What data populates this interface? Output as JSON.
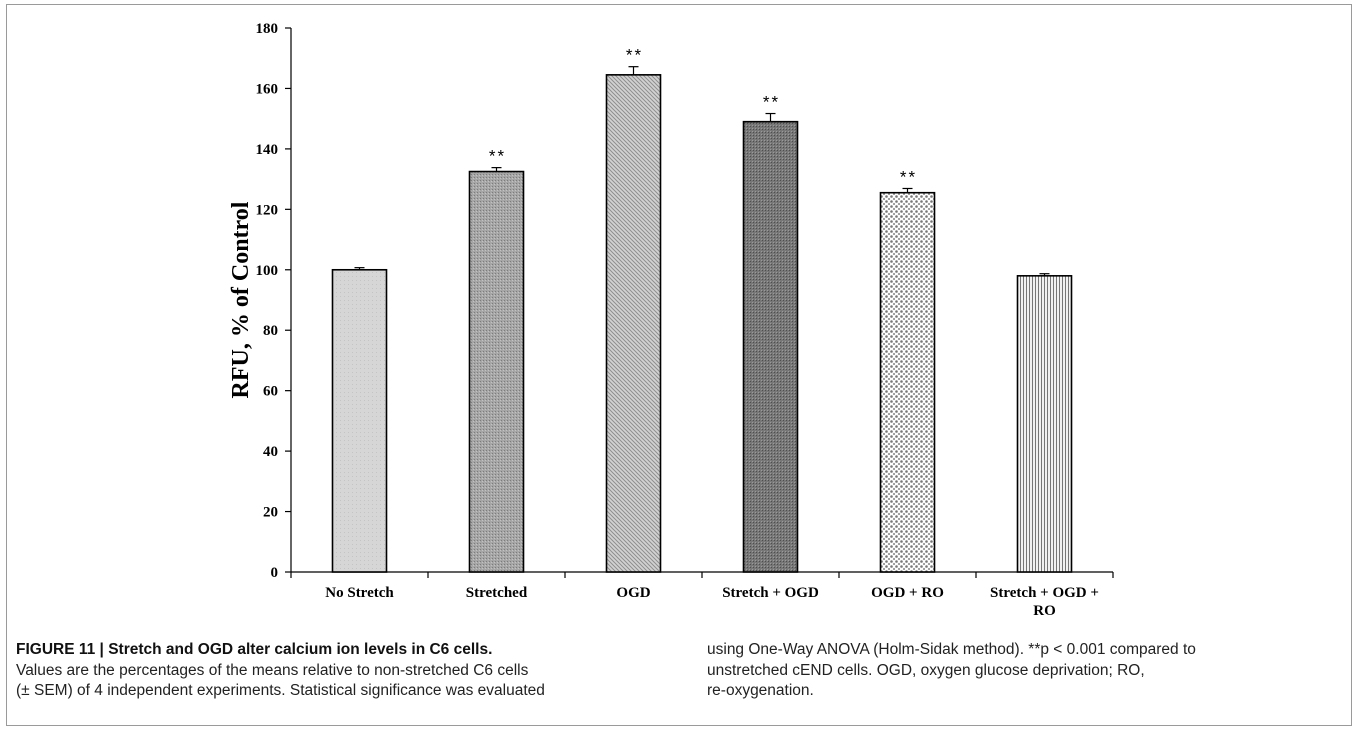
{
  "chart_data": {
    "type": "bar",
    "title": "",
    "xlabel": "",
    "ylabel": "RFU,  % of Control",
    "ylim": [
      0,
      180
    ],
    "yticks": [
      0,
      20,
      40,
      60,
      80,
      100,
      120,
      140,
      160,
      180
    ],
    "categories": [
      [
        "No Stretch"
      ],
      [
        "Stretched"
      ],
      [
        "OGD"
      ],
      [
        "Stretch + OGD"
      ],
      [
        "OGD + RO"
      ],
      [
        "Stretch + OGD +",
        "RO"
      ]
    ],
    "values": [
      100,
      132.5,
      164.5,
      149,
      125.5,
      98
    ],
    "errors": [
      0.7,
      1.3,
      2.7,
      2.7,
      1.4,
      0.7
    ],
    "significance": [
      "",
      "**",
      "**",
      "**",
      "**",
      ""
    ],
    "patterns": [
      "light-solid",
      "fine-dots-gray",
      "diagonal-hatch",
      "dark-fine-dots",
      "coarse-dots",
      "vertical-lines"
    ],
    "grid": false,
    "legend": "none"
  },
  "caption": {
    "title": "FIGURE 11 | Stretch and OGD alter calcium ion levels in C6 cells.",
    "left_lines": [
      "Values are the percentages of the means relative to non-stretched C6 cells",
      "(± SEM) of 4 independent experiments. Statistical significance was evaluated"
    ],
    "right_line1": "using One-Way ANOVA (Holm-Sidak method). **p < 0.001 compared to",
    "right_lines": [
      "unstretched cEND cells. OGD, oxygen glucose deprivation; RO,",
      "re-oxygenation."
    ]
  },
  "colors": {
    "axis": "#000000",
    "bar_outline": "#000000",
    "caption_text": "#222222"
  }
}
